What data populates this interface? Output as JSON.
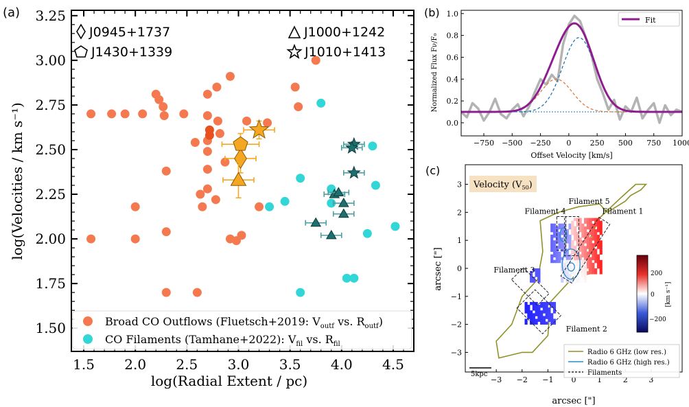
{
  "colors": {
    "outflow": "#f4794f",
    "outflow_dark": "#e8501e",
    "filament": "#33d6d6",
    "target_orange": "#f5a623",
    "target_teal": "#1f6f6f",
    "fit": "#8e1e8f",
    "data_gray": "#b3b3b3",
    "comp_blue": "#1f77b4",
    "comp_orange": "#e07b39",
    "contour_olive": "#8f9226",
    "contour_blue": "#2a8ccf",
    "label_bg": "#f6e2c3"
  },
  "chart_data": [
    {
      "panel_label": "(a)",
      "type": "scatter",
      "xlabel": "log(Radial Extent / pc)",
      "ylabel": "log(Velocities / km s⁻¹)",
      "xlim": [
        1.38,
        4.7
      ],
      "ylim": [
        1.37,
        3.28
      ],
      "xticks": [
        "1.5",
        "2.0",
        "2.5",
        "3.0",
        "3.5",
        "4.0",
        "4.5"
      ],
      "yticks": [
        "1.50",
        "1.75",
        "2.00",
        "2.25",
        "2.50",
        "2.75",
        "3.00",
        "3.25"
      ],
      "grid": false,
      "legend_position": "lower-right",
      "symbol_key": [
        {
          "symbol": "diamond",
          "label": "J0945+1737"
        },
        {
          "symbol": "triangle",
          "label": "J1000+1242"
        },
        {
          "symbol": "pentagon",
          "label": "J1430+1339"
        },
        {
          "symbol": "star",
          "label": "J1010+1413"
        }
      ],
      "series": [
        {
          "name": "Broad CO Outflows (Fluetsch+2019: V",
          "name_sub1": "outf",
          "name_mid": " vs. R",
          "name_sub2": "outf",
          "name_end": ")",
          "color_key": "outflow",
          "points": [
            [
              1.57,
              2.7
            ],
            [
              1.57,
              2.0
            ],
            [
              1.77,
              2.7
            ],
            [
              1.9,
              2.7
            ],
            [
              2.0,
              2.18
            ],
            [
              2.0,
              2.0
            ],
            [
              2.07,
              2.7
            ],
            [
              2.2,
              2.81
            ],
            [
              2.23,
              2.78
            ],
            [
              2.27,
              2.74
            ],
            [
              2.28,
              2.69
            ],
            [
              2.3,
              2.38
            ],
            [
              2.3,
              2.04
            ],
            [
              2.3,
              1.7
            ],
            [
              2.47,
              2.7
            ],
            [
              2.58,
              2.54
            ],
            [
              2.6,
              1.7
            ],
            [
              2.63,
              2.25
            ],
            [
              2.65,
              2.18
            ],
            [
              2.7,
              2.81
            ],
            [
              2.7,
              2.69
            ],
            [
              2.7,
              2.55
            ],
            [
              2.7,
              2.49
            ],
            [
              2.7,
              2.39
            ],
            [
              2.7,
              2.28
            ],
            [
              2.78,
              2.22
            ],
            [
              2.79,
              2.85
            ],
            [
              2.8,
              2.66
            ],
            [
              2.82,
              2.59
            ],
            [
              2.87,
              2.43
            ],
            [
              2.92,
              2.91
            ],
            [
              2.92,
              2.0
            ],
            [
              2.98,
              1.99
            ],
            [
              3.03,
              2.02
            ],
            [
              3.08,
              2.66
            ],
            [
              3.2,
              2.18
            ],
            [
              3.28,
              2.65
            ],
            [
              3.55,
              2.85
            ],
            [
              3.58,
              2.74
            ],
            [
              3.75,
              3.0
            ]
          ],
          "dark_points": [
            [
              2.72,
              2.61
            ],
            [
              2.72,
              2.58
            ]
          ]
        },
        {
          "name": "CO Filaments (Tamhane+2022): V",
          "name_sub1": "fil",
          "name_mid": " vs. R",
          "name_sub2": "fil",
          "name_end": "",
          "color_key": "filament",
          "points": [
            [
              3.3,
              2.18
            ],
            [
              3.45,
              2.21
            ],
            [
              3.6,
              2.34
            ],
            [
              3.6,
              1.7
            ],
            [
              3.8,
              2.76
            ],
            [
              3.9,
              2.28
            ],
            [
              3.9,
              2.2
            ],
            [
              4.05,
              1.78
            ],
            [
              4.12,
              1.78
            ],
            [
              4.25,
              2.03
            ],
            [
              4.3,
              2.52
            ],
            [
              4.33,
              2.3
            ],
            [
              4.52,
              2.07
            ]
          ]
        }
      ],
      "targets": [
        {
          "name": "J0945+1737",
          "symbol": "diamond",
          "color_key": "target_orange",
          "x": 3.02,
          "y": 2.45,
          "xerr": 0.15,
          "yerr": 0.08
        },
        {
          "name": "J1430+1339",
          "symbol": "pentagon",
          "color_key": "target_orange",
          "x": 3.02,
          "y": 2.53,
          "xerr": 0.18,
          "yerr": 0.06
        },
        {
          "name": "J1000+1242",
          "symbol": "triangle",
          "color_key": "target_orange",
          "x": 3.0,
          "y": 2.33,
          "xerr": 0.15,
          "yerr": 0.1
        },
        {
          "name": "J1010+1413",
          "symbol": "star",
          "color_key": "target_orange",
          "x": 3.2,
          "y": 2.61,
          "xerr": 0.15,
          "yerr": 0.05
        },
        {
          "name": "fil",
          "symbol": "triangle",
          "color_key": "target_teal",
          "x": 3.75,
          "y": 2.09,
          "xerr": 0.1,
          "yerr": 0
        },
        {
          "name": "fil",
          "symbol": "triangle",
          "color_key": "target_teal",
          "x": 3.9,
          "y": 2.02,
          "xerr": 0.1,
          "yerr": 0
        },
        {
          "name": "fil",
          "symbol": "triangle",
          "color_key": "target_teal",
          "x": 3.93,
          "y": 2.25,
          "xerr": 0.1,
          "yerr": 0
        },
        {
          "name": "fil",
          "symbol": "triangle",
          "color_key": "target_teal",
          "x": 3.97,
          "y": 2.26,
          "xerr": 0.1,
          "yerr": 0
        },
        {
          "name": "fil",
          "symbol": "triangle",
          "color_key": "target_teal",
          "x": 4.02,
          "y": 2.2,
          "xerr": 0.1,
          "yerr": 0
        },
        {
          "name": "fil",
          "symbol": "triangle",
          "color_key": "target_teal",
          "x": 4.02,
          "y": 2.14,
          "xerr": 0.1,
          "yerr": 0
        },
        {
          "name": "fil",
          "symbol": "star",
          "color_key": "target_teal",
          "x": 4.12,
          "y": 2.53,
          "xerr": 0.1,
          "yerr": 0
        },
        {
          "name": "fil",
          "symbol": "star",
          "color_key": "target_teal",
          "x": 4.1,
          "y": 2.51,
          "xerr": 0.1,
          "yerr": 0
        },
        {
          "name": "fil",
          "symbol": "star",
          "color_key": "target_teal",
          "x": 4.12,
          "y": 2.37,
          "xerr": 0.1,
          "yerr": 0
        }
      ]
    },
    {
      "panel_label": "(b)",
      "type": "line",
      "xlabel": "Offset Velocity [km/s]",
      "ylabel": "Normalized Flux Fν/F₀",
      "xlim": [
        -950,
        1000
      ],
      "ylim": [
        -0.12,
        1.03
      ],
      "xticks": [
        "−750",
        "−500",
        "−250",
        "0",
        "250",
        "500",
        "750",
        "1000"
      ],
      "yticks": [
        "0.0",
        "0.2",
        "0.4",
        "0.6",
        "0.8",
        "1.0"
      ],
      "legend_entry": "Fit",
      "legend_position": "upper-right",
      "baseline": 0.1,
      "components": [
        {
          "name": "narrow",
          "amplitude": 0.68,
          "center": 90,
          "sigma": 145,
          "style": "dashed",
          "color_key": "comp_blue"
        },
        {
          "name": "broad",
          "amplitude": 0.3,
          "center": -110,
          "sigma": 140,
          "style": "dashed",
          "color_key": "comp_orange"
        }
      ],
      "data_spectrum": {
        "x": [
          -950,
          -900,
          -850,
          -800,
          -750,
          -700,
          -650,
          -600,
          -550,
          -500,
          -450,
          -400,
          -350,
          -300,
          -250,
          -200,
          -150,
          -100,
          -50,
          0,
          50,
          100,
          150,
          200,
          250,
          300,
          350,
          400,
          450,
          500,
          550,
          600,
          650,
          700,
          750,
          800,
          850,
          900,
          950,
          1000
        ],
        "y": [
          0.1,
          0.05,
          0.18,
          0.13,
          0.02,
          0.1,
          0.22,
          0.08,
          0.04,
          0.12,
          0.17,
          0.06,
          0.15,
          0.28,
          0.4,
          0.35,
          0.44,
          0.38,
          0.72,
          0.9,
          0.98,
          0.93,
          0.78,
          0.62,
          0.4,
          0.27,
          0.12,
          0.21,
          0.03,
          0.15,
          0.1,
          0.23,
          0.04,
          0.12,
          0.18,
          0.0,
          0.16,
          0.07,
          0.12,
          0.1
        ]
      }
    },
    {
      "panel_label": "(c)",
      "type": "heatmap",
      "xlabel": "arcsec [\"]",
      "ylabel": "arcsec [\"]",
      "xlim": [
        -4.2,
        4.2
      ],
      "ylim": [
        -3.7,
        3.7
      ],
      "xticks": [
        "−3",
        "−2",
        "−1",
        "0",
        "1",
        "2",
        "3"
      ],
      "yticks": [
        "−3",
        "−2",
        "−1",
        "0",
        "1",
        "2",
        "3"
      ],
      "map_label": "Velocity (V",
      "map_label_sub": "50",
      "map_label_end": ")",
      "colorbar_label": "[km s⁻¹]",
      "colorbar_ticks": [
        "200",
        "0",
        "−200"
      ],
      "colorbar_range": [
        -300,
        300
      ],
      "scalebar": "5kpc",
      "filaments": [
        {
          "label": "Filament 1",
          "cx": 0.45,
          "cy": 0.65,
          "w": 0.5,
          "h": 2.5,
          "angle": 33
        },
        {
          "label": "Filament 5",
          "cx": -0.08,
          "cy": 1.15,
          "w": 0.55,
          "h": 1.4,
          "angle": 0
        },
        {
          "label": "Filament 4",
          "cx": -0.48,
          "cy": 1.25,
          "w": 0.35,
          "h": 1.2,
          "angle": 0
        },
        {
          "label": "Filament 3",
          "cx": -1.68,
          "cy": -0.65,
          "w": 0.65,
          "h": 1.3,
          "angle": -45
        },
        {
          "label": "Filament 2",
          "cx": -1.35,
          "cy": -1.55,
          "w": 1.0,
          "h": 1.3,
          "angle": -45
        }
      ],
      "legend": [
        {
          "label": "Radio 6 GHz (low res.)",
          "style": "solid",
          "color_key": "contour_olive"
        },
        {
          "label": "Radio 6 GHz (high res.)",
          "style": "solid",
          "color_key": "contour_blue"
        },
        {
          "label": "Filaments",
          "style": "dashed",
          "color_key": "text_black"
        }
      ],
      "legend_position": "lower-right"
    }
  ]
}
